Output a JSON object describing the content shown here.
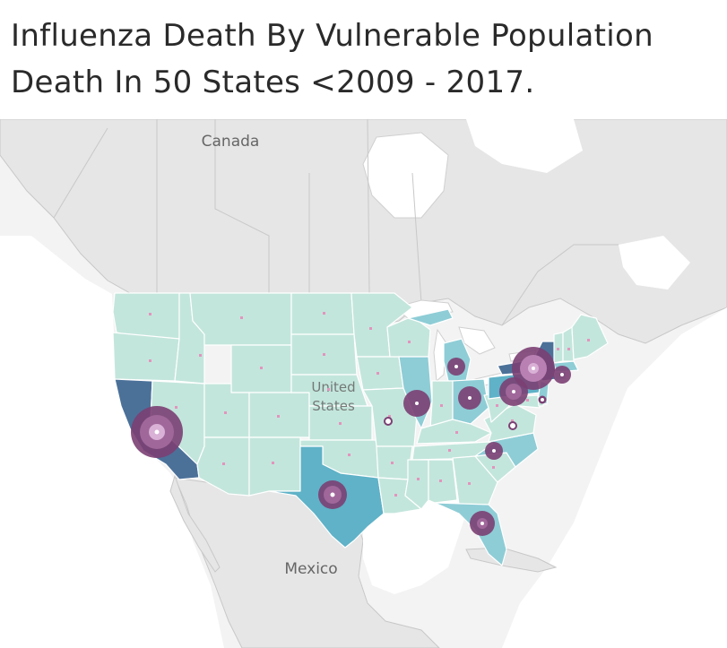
{
  "title": {
    "line1": "Influenza Death By Vulnerable Population",
    "line2": "Death In 50 States <2009 - 2017."
  },
  "map": {
    "labels": {
      "canada": "Canada",
      "united_states_1": "United",
      "united_states_2": "States",
      "mexico": "Mexico"
    },
    "colors": {
      "background": "#f3f3f3",
      "land_other": "#e6e6e6",
      "land_us_base": "#c3e6dc",
      "water": "#ffffff",
      "state_mid": "#8ecdd6",
      "state_high": "#5fb2c7",
      "state_top": "#4b7199",
      "bubble_outer": "#7b3f73",
      "bubble_mid": "#a0679a",
      "bubble_inner": "#d9b0d6",
      "state_dot": "#e394bd",
      "state_border": "#ffffff"
    }
  }
}
